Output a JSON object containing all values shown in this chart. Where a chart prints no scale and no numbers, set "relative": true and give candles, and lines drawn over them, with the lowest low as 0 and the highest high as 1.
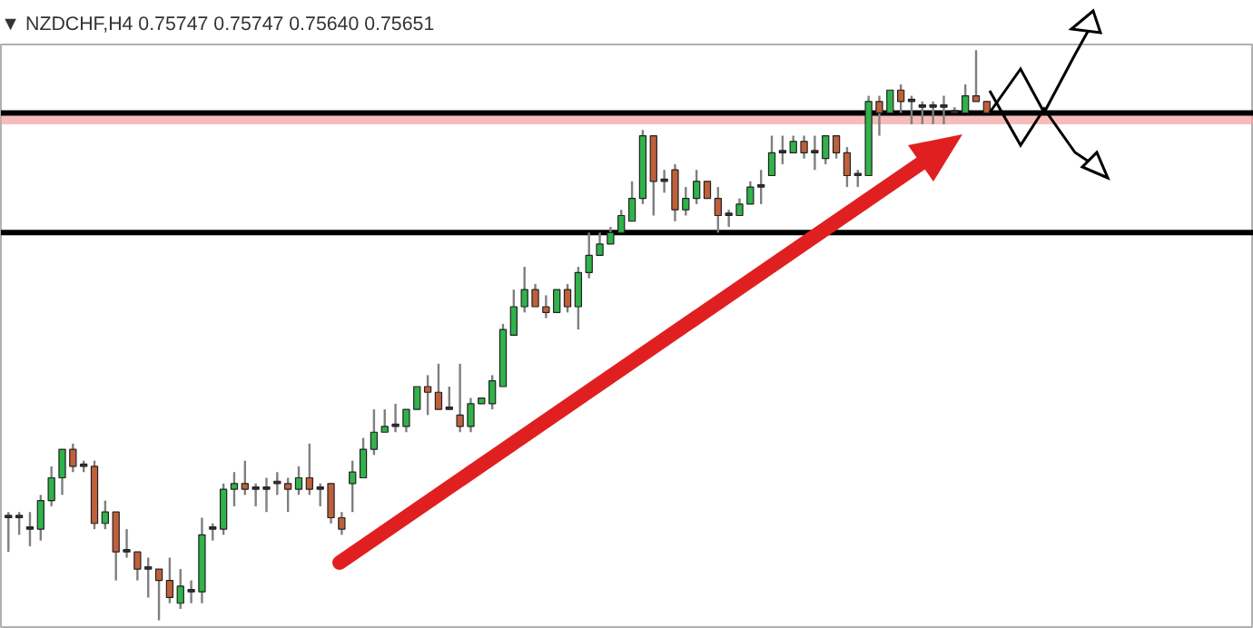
{
  "chart_data": {
    "type": "candlestick",
    "title": "▼ NZDCHF,H4  0.75747 0.75747 0.75640 0.75651",
    "relative": true,
    "grid": false,
    "categories": [
      null,
      null,
      null,
      null,
      null,
      null,
      null,
      null,
      null,
      null,
      null,
      null,
      null,
      null,
      null,
      null,
      null,
      null,
      null,
      null,
      null,
      null,
      null,
      null,
      null,
      null,
      null,
      null,
      null,
      null,
      null,
      null,
      null,
      null,
      null,
      null,
      null,
      null,
      null,
      null,
      null,
      null,
      null,
      null,
      null,
      null,
      null,
      null,
      null,
      null,
      null,
      null,
      null,
      null,
      null,
      null,
      null,
      null,
      null,
      null,
      null,
      null,
      null,
      null,
      null,
      null,
      null,
      null,
      null,
      null,
      null,
      null,
      null,
      null,
      null,
      null,
      null,
      null,
      null,
      null,
      null,
      null,
      null,
      null,
      null,
      null,
      null,
      null,
      null,
      null,
      null,
      null
    ],
    "ohlc": [
      [
        0.18,
        0.19,
        0.12,
        0.18
      ],
      [
        0.18,
        0.19,
        0.15,
        0.18
      ],
      [
        0.16,
        0.19,
        0.13,
        0.16
      ],
      [
        0.16,
        0.22,
        0.14,
        0.21
      ],
      [
        0.21,
        0.27,
        0.2,
        0.25
      ],
      [
        0.25,
        0.3,
        0.22,
        0.3
      ],
      [
        0.3,
        0.31,
        0.26,
        0.27
      ],
      [
        0.27,
        0.28,
        0.26,
        0.27
      ],
      [
        0.27,
        0.28,
        0.16,
        0.17
      ],
      [
        0.17,
        0.21,
        0.16,
        0.19
      ],
      [
        0.19,
        0.19,
        0.07,
        0.12
      ],
      [
        0.12,
        0.16,
        0.11,
        0.12
      ],
      [
        0.12,
        0.12,
        0.07,
        0.09
      ],
      [
        0.09,
        0.11,
        0.04,
        0.09
      ],
      [
        0.09,
        0.09,
        0,
        0.07
      ],
      [
        0.07,
        0.11,
        0.03,
        0.04
      ],
      [
        0.03,
        0.09,
        0.02,
        0.06
      ],
      [
        0.05,
        0.07,
        0.03,
        0.05
      ],
      [
        0.05,
        0.18,
        0.03,
        0.15
      ],
      [
        0.16,
        0.17,
        0.14,
        0.16
      ],
      [
        0.16,
        0.24,
        0.15,
        0.23
      ],
      [
        0.23,
        0.26,
        0.2,
        0.24
      ],
      [
        0.24,
        0.28,
        0.22,
        0.23
      ],
      [
        0.23,
        0.24,
        0.2,
        0.23
      ],
      [
        0.23,
        0.25,
        0.19,
        0.23
      ],
      [
        0.24,
        0.26,
        0.22,
        0.24
      ],
      [
        0.24,
        0.25,
        0.19,
        0.23
      ],
      [
        0.23,
        0.27,
        0.22,
        0.25
      ],
      [
        0.25,
        0.31,
        0.22,
        0.23
      ],
      [
        0.23,
        0.24,
        0.2,
        0.23
      ],
      [
        0.24,
        0.24,
        0.17,
        0.18
      ],
      [
        0.18,
        0.19,
        0.15,
        0.16
      ],
      [
        0.24,
        0.28,
        0.19,
        0.26
      ],
      [
        0.25,
        0.32,
        0.25,
        0.3
      ],
      [
        0.3,
        0.37,
        0.29,
        0.33
      ],
      [
        0.33,
        0.37,
        0.33,
        0.34
      ],
      [
        0.34,
        0.38,
        0.33,
        0.34
      ],
      [
        0.34,
        0.37,
        0.33,
        0.37
      ],
      [
        0.37,
        0.41,
        0.37,
        0.41
      ],
      [
        0.41,
        0.43,
        0.36,
        0.4
      ],
      [
        0.4,
        0.45,
        0.37,
        0.37
      ],
      [
        0.37,
        0.41,
        0.37,
        0.37
      ],
      [
        0.36,
        0.45,
        0.33,
        0.34
      ],
      [
        0.34,
        0.39,
        0.33,
        0.38
      ],
      [
        0.38,
        0.39,
        0.38,
        0.39
      ],
      [
        0.38,
        0.43,
        0.37,
        0.42
      ],
      [
        0.41,
        0.52,
        0.41,
        0.51
      ],
      [
        0.5,
        0.58,
        0.5,
        0.55
      ],
      [
        0.55,
        0.62,
        0.54,
        0.58
      ],
      [
        0.58,
        0.59,
        0.55,
        0.55
      ],
      [
        0.55,
        0.57,
        0.53,
        0.54
      ],
      [
        0.54,
        0.58,
        0.54,
        0.58
      ],
      [
        0.58,
        0.59,
        0.54,
        0.55
      ],
      [
        0.55,
        0.62,
        0.51,
        0.61
      ],
      [
        0.61,
        0.68,
        0.6,
        0.64
      ],
      [
        0.64,
        0.68,
        0.64,
        0.66
      ],
      [
        0.66,
        0.69,
        0.66,
        0.68
      ],
      [
        0.68,
        0.72,
        0.68,
        0.71
      ],
      [
        0.7,
        0.77,
        0.7,
        0.74
      ],
      [
        0.74,
        0.86,
        0.73,
        0.85
      ],
      [
        0.85,
        0.85,
        0.71,
        0.77
      ],
      [
        0.77,
        0.79,
        0.75,
        0.77
      ],
      [
        0.79,
        0.8,
        0.7,
        0.72
      ],
      [
        0.72,
        0.76,
        0.71,
        0.74
      ],
      [
        0.74,
        0.79,
        0.73,
        0.77
      ],
      [
        0.77,
        0.77,
        0.74,
        0.74
      ],
      [
        0.74,
        0.76,
        0.68,
        0.71
      ],
      [
        0.71,
        0.72,
        0.69,
        0.71
      ],
      [
        0.71,
        0.74,
        0.71,
        0.73
      ],
      [
        0.73,
        0.77,
        0.73,
        0.76
      ],
      [
        0.76,
        0.79,
        0.73,
        0.76
      ],
      [
        0.78,
        0.85,
        0.78,
        0.82
      ],
      [
        0.82,
        0.85,
        0.8,
        0.82
      ],
      [
        0.82,
        0.85,
        0.82,
        0.84
      ],
      [
        0.84,
        0.85,
        0.81,
        0.82
      ],
      [
        0.82,
        0.85,
        0.79,
        0.82
      ],
      [
        0.81,
        0.85,
        0.8,
        0.85
      ],
      [
        0.85,
        0.85,
        0.81,
        0.82
      ],
      [
        0.82,
        0.83,
        0.76,
        0.78
      ],
      [
        0.78,
        0.79,
        0.76,
        0.78
      ],
      [
        0.78,
        0.92,
        0.78,
        0.91
      ],
      [
        0.91,
        0.92,
        0.85,
        0.89
      ],
      [
        0.89,
        0.93,
        0.89,
        0.93
      ],
      [
        0.93,
        0.94,
        0.89,
        0.91
      ],
      [
        0.91,
        0.92,
        0.87,
        0.91
      ],
      [
        0.9,
        0.91,
        0.87,
        0.9
      ],
      [
        0.9,
        0.91,
        0.87,
        0.9
      ],
      [
        0.9,
        0.92,
        0.87,
        0.9
      ],
      [
        0.89,
        0.9,
        0.89,
        0.89
      ],
      [
        0.89,
        0.94,
        0.89,
        0.92
      ],
      [
        0.92,
        1.0,
        0.91,
        0.91
      ],
      [
        0.91,
        0.91,
        0.89,
        0.89
      ]
    ],
    "ref_lines": [
      {
        "axis": "y",
        "value": 0.68,
        "color": "#000000"
      },
      {
        "axis": "y",
        "value": 0.89,
        "color": "#000000"
      }
    ],
    "bands": [
      {
        "axis": "y",
        "from": 0.87,
        "to": 0.89,
        "color": "#f2a0a0"
      }
    ]
  }
}
